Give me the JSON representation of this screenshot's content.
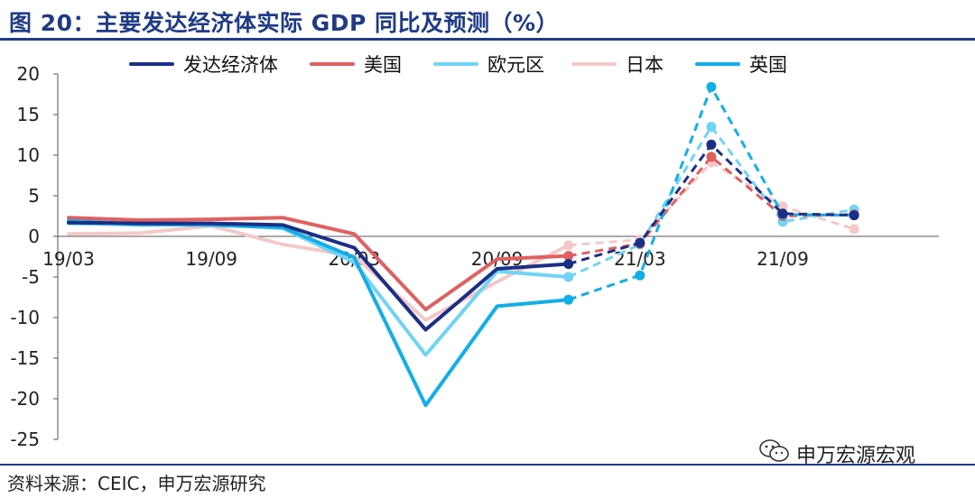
{
  "header": {
    "title": "图 20：主要发达经济体实际 GDP 同比及预测（%）"
  },
  "footer": {
    "source": "资料来源：CEIC，申万宏源研究",
    "watermark": "申万宏源宏观"
  },
  "chart_data": {
    "type": "line",
    "title": "图 20：主要发达经济体实际 GDP 同比及预测（%）",
    "categories": [
      "19/03",
      "19/06",
      "19/09",
      "19/12",
      "20/03",
      "20/06",
      "20/09",
      "20/12",
      "21/03",
      "21/06",
      "21/09",
      "21/12"
    ],
    "x_tick_labels": [
      "19/03",
      "19/09",
      "20/03",
      "20/09",
      "21/03",
      "21/09"
    ],
    "ylim": [
      -25,
      20
    ],
    "yticks": [
      20,
      15,
      10,
      5,
      0,
      -5,
      -10,
      -15,
      -20,
      -25
    ],
    "forecast_from_index": 7,
    "series": [
      {
        "name": "发达经济体",
        "color": "#1a2f86",
        "values": [
          1.7,
          1.6,
          1.6,
          1.4,
          -1.4,
          -11.5,
          -4.0,
          -3.4,
          -0.8,
          11.3,
          2.8,
          2.6
        ]
      },
      {
        "name": "美国",
        "color": "#e06060",
        "values": [
          2.3,
          2.0,
          2.1,
          2.3,
          0.3,
          -9.0,
          -2.8,
          -2.4,
          -0.9,
          9.8,
          2.5,
          2.7
        ]
      },
      {
        "name": "欧元区",
        "color": "#6fd4f5",
        "values": [
          1.6,
          1.4,
          1.5,
          1.0,
          -3.2,
          -14.6,
          -4.3,
          -5.0,
          -1.0,
          13.5,
          1.8,
          3.3
        ]
      },
      {
        "name": "日本",
        "color": "#f5c8c8",
        "values": [
          0.3,
          0.4,
          1.3,
          -1.0,
          -2.4,
          -10.3,
          -5.6,
          -1.1,
          -0.4,
          9.1,
          3.7,
          0.9
        ]
      },
      {
        "name": "英国",
        "color": "#12aee8",
        "values": [
          1.9,
          1.5,
          1.4,
          1.1,
          -2.6,
          -20.8,
          -8.6,
          -7.8,
          -4.8,
          18.4,
          2.7,
          2.6
        ]
      }
    ]
  }
}
